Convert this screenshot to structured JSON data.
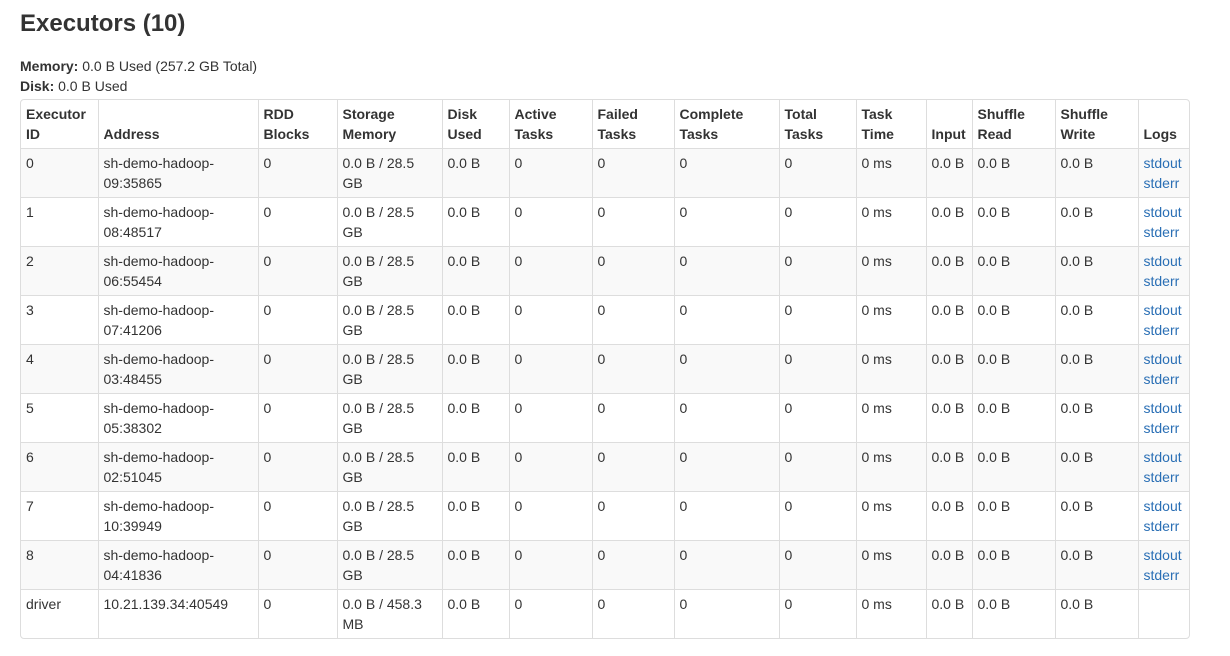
{
  "header": {
    "title": "Executors (10)"
  },
  "summary": {
    "memory_label": "Memory:",
    "memory_value": "0.0 B Used (257.2 GB Total)",
    "disk_label": "Disk:",
    "disk_value": "0.0 B Used"
  },
  "table": {
    "columns": [
      "Executor ID",
      "Address",
      "RDD Blocks",
      "Storage Memory",
      "Disk Used",
      "Active Tasks",
      "Failed Tasks",
      "Complete Tasks",
      "Total Tasks",
      "Task Time",
      "Input",
      "Shuffle Read",
      "Shuffle Write",
      "Logs"
    ],
    "rows": [
      {
        "id": "0",
        "address": "sh-demo-hadoop-09:35865",
        "rdd_blocks": "0",
        "storage_memory": "0.0 B / 28.5 GB",
        "disk_used": "0.0 B",
        "active_tasks": "0",
        "failed_tasks": "0",
        "complete_tasks": "0",
        "total_tasks": "0",
        "task_time": "0 ms",
        "input": "0.0 B",
        "shuffle_read": "0.0 B",
        "shuffle_write": "0.0 B",
        "logs": [
          "stdout",
          "stderr"
        ]
      },
      {
        "id": "1",
        "address": "sh-demo-hadoop-08:48517",
        "rdd_blocks": "0",
        "storage_memory": "0.0 B / 28.5 GB",
        "disk_used": "0.0 B",
        "active_tasks": "0",
        "failed_tasks": "0",
        "complete_tasks": "0",
        "total_tasks": "0",
        "task_time": "0 ms",
        "input": "0.0 B",
        "shuffle_read": "0.0 B",
        "shuffle_write": "0.0 B",
        "logs": [
          "stdout",
          "stderr"
        ]
      },
      {
        "id": "2",
        "address": "sh-demo-hadoop-06:55454",
        "rdd_blocks": "0",
        "storage_memory": "0.0 B / 28.5 GB",
        "disk_used": "0.0 B",
        "active_tasks": "0",
        "failed_tasks": "0",
        "complete_tasks": "0",
        "total_tasks": "0",
        "task_time": "0 ms",
        "input": "0.0 B",
        "shuffle_read": "0.0 B",
        "shuffle_write": "0.0 B",
        "logs": [
          "stdout",
          "stderr"
        ]
      },
      {
        "id": "3",
        "address": "sh-demo-hadoop-07:41206",
        "rdd_blocks": "0",
        "storage_memory": "0.0 B / 28.5 GB",
        "disk_used": "0.0 B",
        "active_tasks": "0",
        "failed_tasks": "0",
        "complete_tasks": "0",
        "total_tasks": "0",
        "task_time": "0 ms",
        "input": "0.0 B",
        "shuffle_read": "0.0 B",
        "shuffle_write": "0.0 B",
        "logs": [
          "stdout",
          "stderr"
        ]
      },
      {
        "id": "4",
        "address": "sh-demo-hadoop-03:48455",
        "rdd_blocks": "0",
        "storage_memory": "0.0 B / 28.5 GB",
        "disk_used": "0.0 B",
        "active_tasks": "0",
        "failed_tasks": "0",
        "complete_tasks": "0",
        "total_tasks": "0",
        "task_time": "0 ms",
        "input": "0.0 B",
        "shuffle_read": "0.0 B",
        "shuffle_write": "0.0 B",
        "logs": [
          "stdout",
          "stderr"
        ]
      },
      {
        "id": "5",
        "address": "sh-demo-hadoop-05:38302",
        "rdd_blocks": "0",
        "storage_memory": "0.0 B / 28.5 GB",
        "disk_used": "0.0 B",
        "active_tasks": "0",
        "failed_tasks": "0",
        "complete_tasks": "0",
        "total_tasks": "0",
        "task_time": "0 ms",
        "input": "0.0 B",
        "shuffle_read": "0.0 B",
        "shuffle_write": "0.0 B",
        "logs": [
          "stdout",
          "stderr"
        ]
      },
      {
        "id": "6",
        "address": "sh-demo-hadoop-02:51045",
        "rdd_blocks": "0",
        "storage_memory": "0.0 B / 28.5 GB",
        "disk_used": "0.0 B",
        "active_tasks": "0",
        "failed_tasks": "0",
        "complete_tasks": "0",
        "total_tasks": "0",
        "task_time": "0 ms",
        "input": "0.0 B",
        "shuffle_read": "0.0 B",
        "shuffle_write": "0.0 B",
        "logs": [
          "stdout",
          "stderr"
        ]
      },
      {
        "id": "7",
        "address": "sh-demo-hadoop-10:39949",
        "rdd_blocks": "0",
        "storage_memory": "0.0 B / 28.5 GB",
        "disk_used": "0.0 B",
        "active_tasks": "0",
        "failed_tasks": "0",
        "complete_tasks": "0",
        "total_tasks": "0",
        "task_time": "0 ms",
        "input": "0.0 B",
        "shuffle_read": "0.0 B",
        "shuffle_write": "0.0 B",
        "logs": [
          "stdout",
          "stderr"
        ]
      },
      {
        "id": "8",
        "address": "sh-demo-hadoop-04:41836",
        "rdd_blocks": "0",
        "storage_memory": "0.0 B / 28.5 GB",
        "disk_used": "0.0 B",
        "active_tasks": "0",
        "failed_tasks": "0",
        "complete_tasks": "0",
        "total_tasks": "0",
        "task_time": "0 ms",
        "input": "0.0 B",
        "shuffle_read": "0.0 B",
        "shuffle_write": "0.0 B",
        "logs": [
          "stdout",
          "stderr"
        ]
      },
      {
        "id": "driver",
        "address": "10.21.139.34:40549",
        "rdd_blocks": "0",
        "storage_memory": "0.0 B / 458.3 MB",
        "disk_used": "0.0 B",
        "active_tasks": "0",
        "failed_tasks": "0",
        "complete_tasks": "0",
        "total_tasks": "0",
        "task_time": "0 ms",
        "input": "0.0 B",
        "shuffle_read": "0.0 B",
        "shuffle_write": "0.0 B",
        "logs": []
      }
    ]
  },
  "colors": {
    "link": "#2a6fb5",
    "stripe": "#f9f9f9",
    "border": "#dddddd",
    "text": "#333333"
  }
}
